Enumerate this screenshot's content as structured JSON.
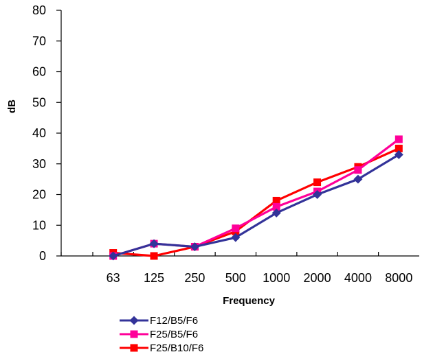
{
  "chart_data": {
    "type": "line",
    "title": "",
    "xlabel": "Frequency",
    "ylabel": "dB",
    "categories": [
      "63",
      "125",
      "250",
      "500",
      "1000",
      "2000",
      "4000",
      "8000"
    ],
    "ylim": [
      0,
      80
    ],
    "yticks": [
      0,
      10,
      20,
      30,
      40,
      50,
      60,
      70,
      80
    ],
    "grid": false,
    "legend_position": "bottom-center",
    "series": [
      {
        "name": "F12/B5/F6",
        "color": "#333399",
        "marker": "diamond",
        "values": [
          0,
          4,
          3,
          6,
          14,
          20,
          25,
          33
        ]
      },
      {
        "name": "F25/B5/F6",
        "color": "#ff0099",
        "marker": "square",
        "values": [
          0,
          4,
          3,
          9,
          16,
          21,
          28,
          38
        ]
      },
      {
        "name": "F25/B10/F6",
        "color": "#ff0000",
        "marker": "square",
        "values": [
          1,
          0,
          3,
          8,
          18,
          24,
          29,
          35
        ]
      }
    ]
  }
}
